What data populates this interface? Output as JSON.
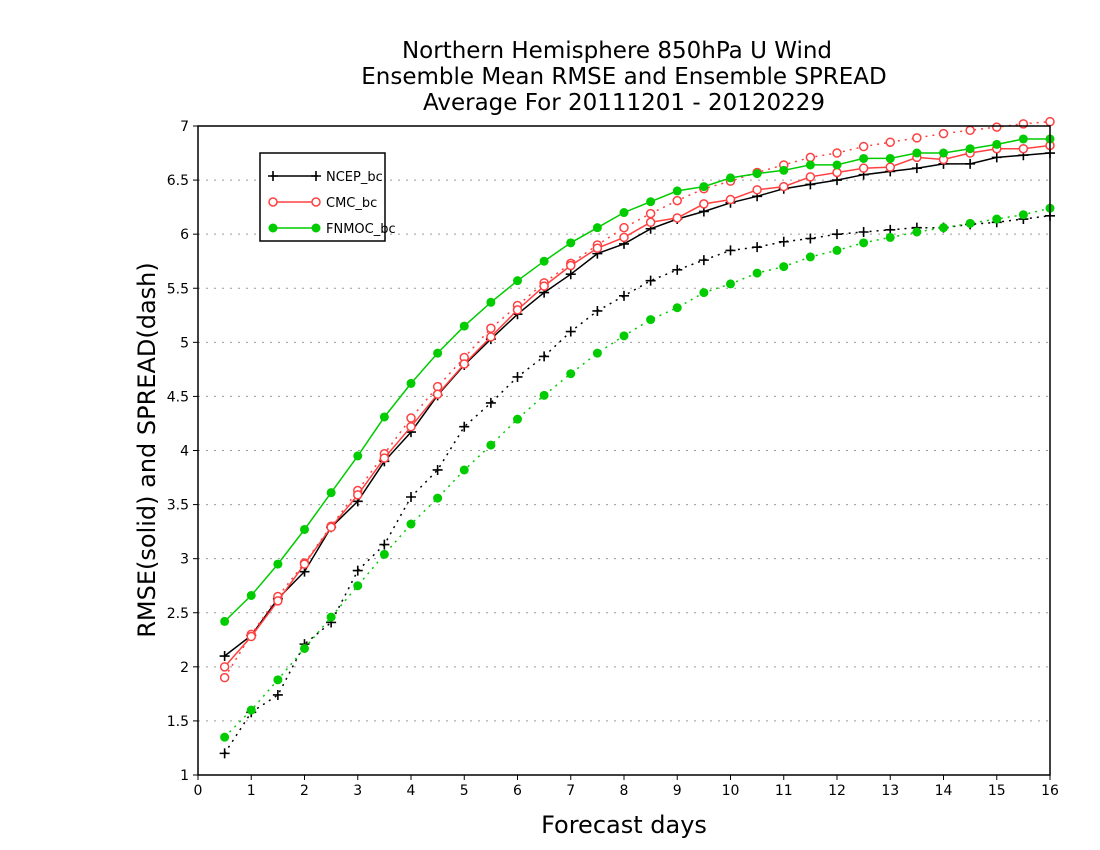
{
  "chart_data": {
    "type": "line",
    "title": [
      "Northern Hemisphere 850hPa U Wind",
      "Ensemble Mean RMSE and Ensemble SPREAD",
      "Average For 20111201 - 20120229"
    ],
    "xlabel": "Forecast days",
    "ylabel": "RMSE(solid) and SPREAD(dash)",
    "xlim": [
      0,
      16
    ],
    "ylim": [
      1,
      7
    ],
    "xticks": [
      "0",
      "1",
      "2",
      "3",
      "4",
      "5",
      "6",
      "7",
      "8",
      "9",
      "10",
      "11",
      "12",
      "13",
      "14",
      "15",
      "16"
    ],
    "yticks": [
      "1",
      "1.5",
      "2",
      "2.5",
      "3",
      "3.5",
      "4",
      "4.5",
      "5",
      "5.5",
      "6",
      "6.5",
      "7"
    ],
    "grid": "horizontal dotted",
    "legend_position": "top-left",
    "x": [
      0.5,
      1,
      1.5,
      2,
      2.5,
      3,
      3.5,
      4,
      4.5,
      5,
      5.5,
      6,
      6.5,
      7,
      7.5,
      8,
      8.5,
      9,
      9.5,
      10,
      10.5,
      11,
      11.5,
      12,
      12.5,
      13,
      13.5,
      14,
      14.5,
      15,
      15.5,
      16
    ],
    "series": [
      {
        "name": "NCEP_bc",
        "color": "#000000",
        "marker": "plus",
        "rmse": [
          2.1,
          2.29,
          2.63,
          2.88,
          3.29,
          3.53,
          3.9,
          4.17,
          4.51,
          4.79,
          5.03,
          5.26,
          5.46,
          5.63,
          5.82,
          5.91,
          6.05,
          6.14,
          6.21,
          6.29,
          6.35,
          6.42,
          6.46,
          6.5,
          6.55,
          6.58,
          6.61,
          6.65,
          6.65,
          6.71,
          6.73,
          6.75
        ],
        "spread": [
          1.2,
          1.58,
          1.74,
          2.21,
          2.41,
          2.89,
          3.13,
          3.57,
          3.82,
          4.22,
          4.44,
          4.68,
          4.87,
          5.1,
          5.29,
          5.43,
          5.57,
          5.67,
          5.76,
          5.85,
          5.88,
          5.93,
          5.96,
          6.0,
          6.02,
          6.04,
          6.06,
          6.06,
          6.09,
          6.11,
          6.14,
          6.17
        ]
      },
      {
        "name": "CMC_bc",
        "color": "#ff4040",
        "marker": "open-circle",
        "rmse": [
          2.0,
          2.28,
          2.61,
          2.95,
          3.29,
          3.59,
          3.93,
          4.22,
          4.52,
          4.8,
          5.05,
          5.3,
          5.52,
          5.71,
          5.87,
          5.97,
          6.11,
          6.15,
          6.28,
          6.32,
          6.41,
          6.44,
          6.53,
          6.57,
          6.61,
          6.62,
          6.71,
          6.69,
          6.75,
          6.79,
          6.79,
          6.82
        ],
        "spread": [
          1.9,
          2.3,
          2.65,
          2.96,
          3.3,
          3.63,
          3.97,
          4.3,
          4.59,
          4.86,
          5.13,
          5.34,
          5.55,
          5.73,
          5.9,
          6.06,
          6.19,
          6.31,
          6.42,
          6.49,
          6.57,
          6.64,
          6.71,
          6.75,
          6.81,
          6.85,
          6.89,
          6.93,
          6.96,
          6.99,
          7.02,
          7.04
        ]
      },
      {
        "name": "FNMOC_bc",
        "color": "#00cc00",
        "marker": "filled-circle",
        "rmse": [
          2.42,
          2.66,
          2.95,
          3.27,
          3.61,
          3.95,
          4.31,
          4.62,
          4.9,
          5.15,
          5.37,
          5.57,
          5.75,
          5.92,
          6.06,
          6.2,
          6.3,
          6.4,
          6.44,
          6.52,
          6.56,
          6.59,
          6.64,
          6.64,
          6.7,
          6.7,
          6.75,
          6.75,
          6.79,
          6.83,
          6.88,
          6.88
        ],
        "spread": [
          1.35,
          1.6,
          1.88,
          2.17,
          2.46,
          2.75,
          3.04,
          3.32,
          3.56,
          3.82,
          4.05,
          4.29,
          4.51,
          4.71,
          4.9,
          5.06,
          5.21,
          5.32,
          5.46,
          5.54,
          5.64,
          5.7,
          5.79,
          5.85,
          5.92,
          5.97,
          6.02,
          6.06,
          6.1,
          6.14,
          6.18,
          6.24
        ]
      }
    ]
  }
}
